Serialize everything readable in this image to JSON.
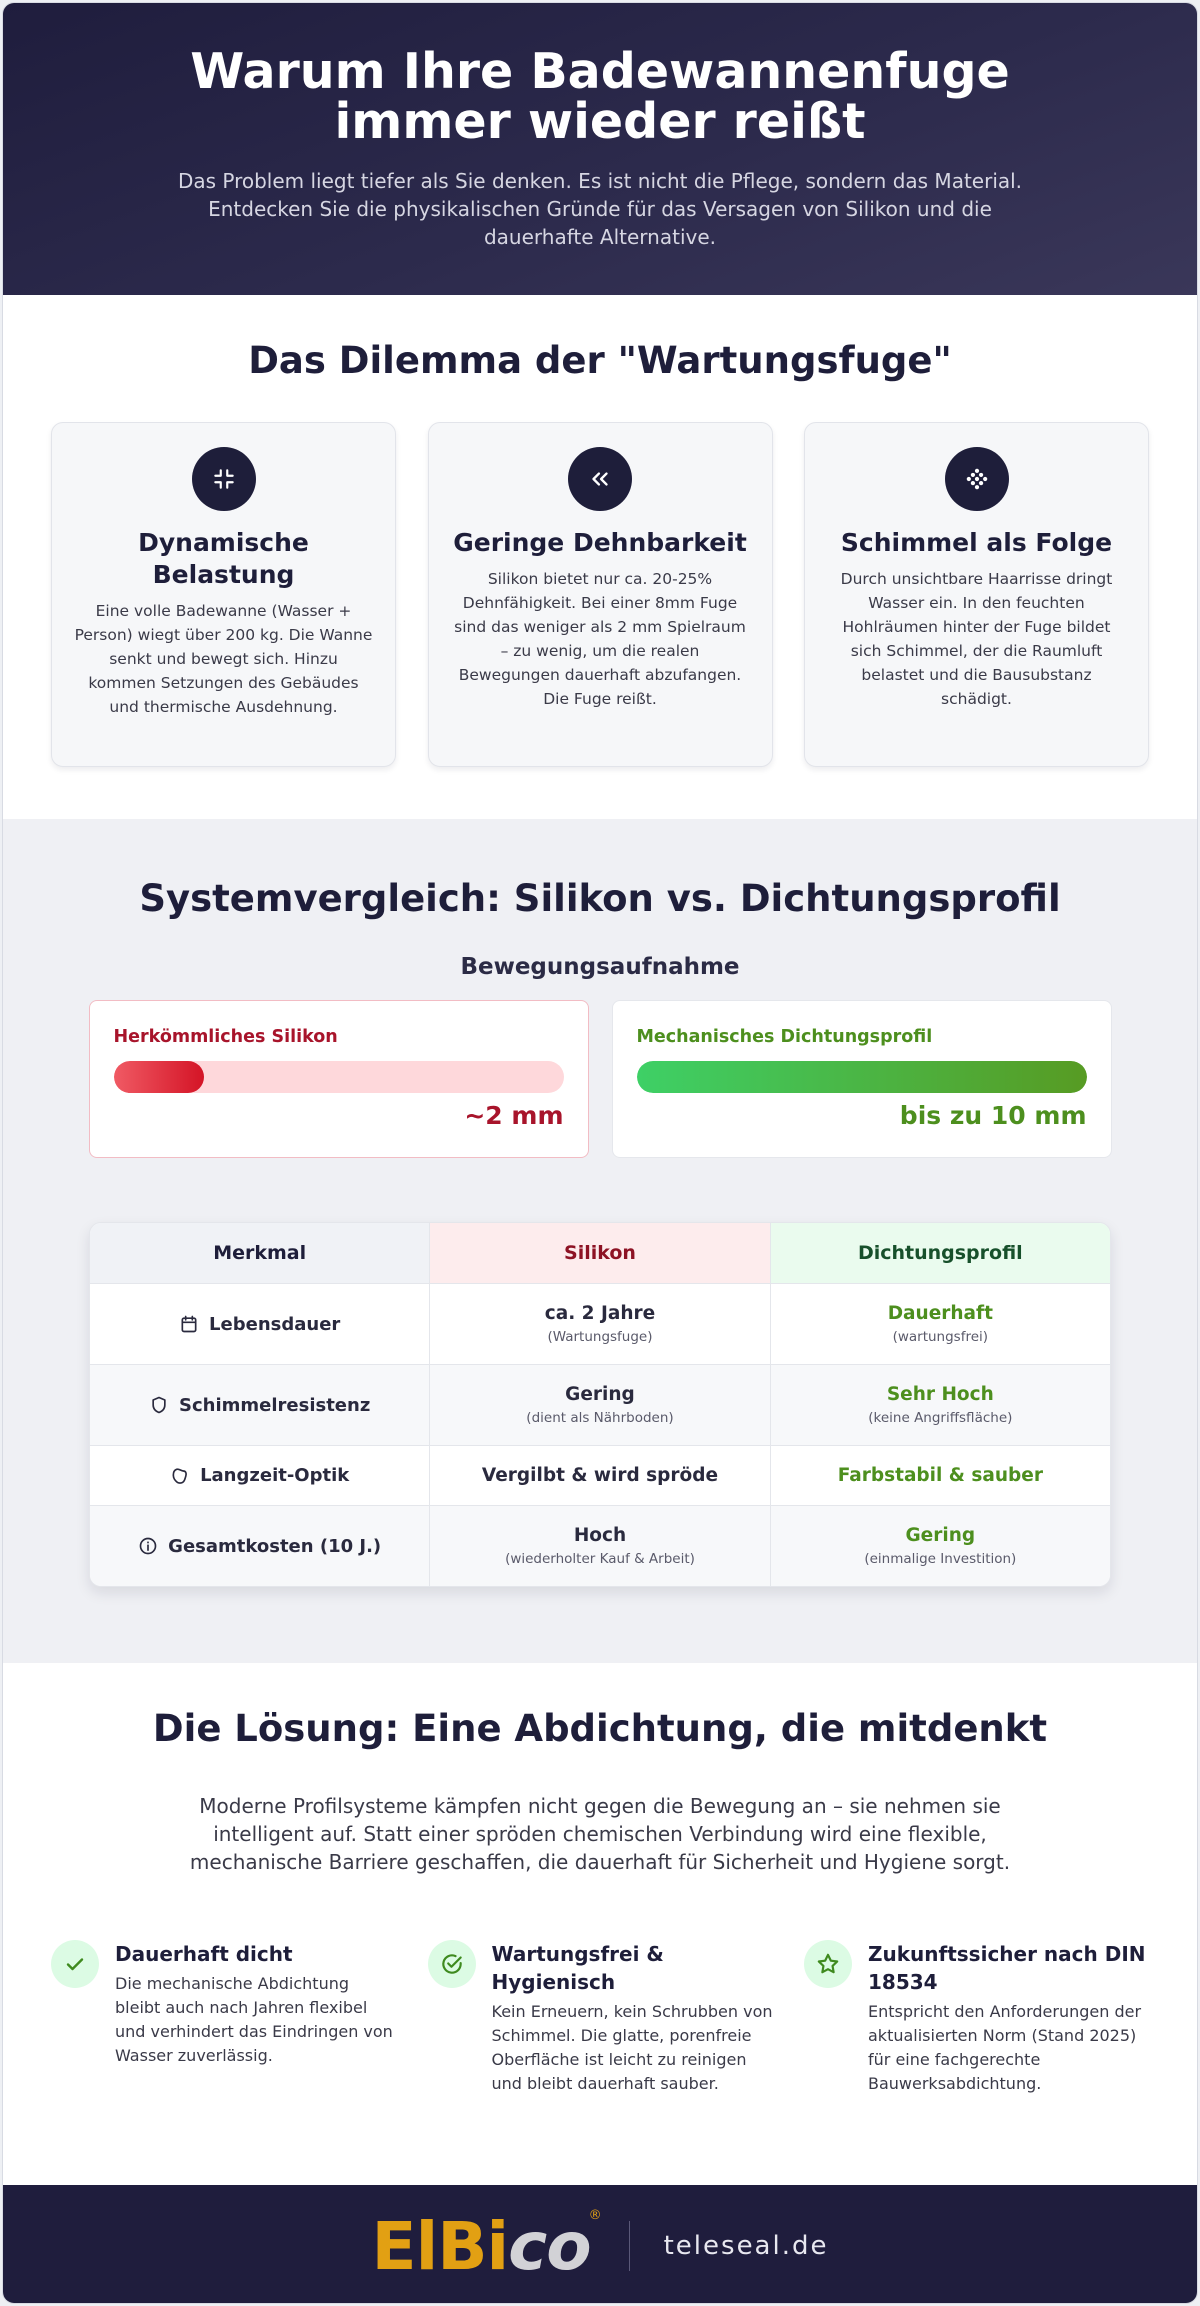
{
  "hero": {
    "title": "Warum Ihre Badewannenfuge immer wieder reißt",
    "subtitle": "Das Problem liegt tiefer als Sie denken. Es ist nicht die Pflege, sondern das Material. Entdecken Sie die physikalischen Gründe für das Versagen von Silikon und die dauerhafte Alternative."
  },
  "dilemma": {
    "title": "Das Dilemma der \"Wartungsfuge\"",
    "cards": [
      {
        "icon": "compress-icon",
        "title": "Dynamische Belastung",
        "text": "Eine volle Badewanne (Wasser + Person) wiegt über 200 kg. Die Wanne senkt und bewegt sich. Hinzu kommen Setzungen des Gebäudes und thermische Ausdehnung."
      },
      {
        "icon": "double-chevron-left-icon",
        "title": "Geringe Dehnbarkeit",
        "text": "Silikon bietet nur ca. 20-25% Dehnfähigkeit. Bei einer 8mm Fuge sind das weniger als 2 mm Spielraum – zu wenig, um die realen Bewegungen dauerhaft abzufangen. Die Fuge reißt."
      },
      {
        "icon": "mold-dots-icon",
        "title": "Schimmel als Folge",
        "text": "Durch unsichtbare Haarrisse dringt Wasser ein. In den feuchten Hohlräumen hinter der Fuge bildet sich Schimmel, der die Raumluft belastet und die Bausubstanz schädigt."
      }
    ]
  },
  "compare": {
    "title": "Systemvergleich: Silikon vs. Dichtungsprofil",
    "movement_title": "Bewegungsaufnahme",
    "silicone": {
      "label": "Herkömmliches Silikon",
      "value": "~2 mm",
      "fill_fraction": 0.2,
      "color": "#d41426"
    },
    "profile": {
      "label": "Mechanisches Dichtungsprofil",
      "value": "bis zu 10 mm",
      "fill_fraction": 1.0,
      "color": "#579b23"
    },
    "table": {
      "headers": [
        "Merkmal",
        "Silikon",
        "Dichtungsprofil"
      ],
      "rows": [
        {
          "icon": "calendar-icon",
          "feature": "Lebensdauer",
          "silicone": "ca. 2 Jahre",
          "silicone_note": "(Wartungsfuge)",
          "profile": "Dauerhaft",
          "profile_note": "(wartungsfrei)"
        },
        {
          "icon": "shield-icon",
          "feature": "Schimmelresistenz",
          "silicone": "Gering",
          "silicone_note": "(dient als Nährboden)",
          "profile": "Sehr Hoch",
          "profile_note": "(keine Angriffsfläche)"
        },
        {
          "icon": "blob-icon",
          "feature": "Langzeit-Optik",
          "silicone": "Vergilbt & wird spröde",
          "silicone_note": "",
          "profile": "Farbstabil & sauber",
          "profile_note": ""
        },
        {
          "icon": "info-icon",
          "feature": "Gesamtkosten (10 J.)",
          "silicone": "Hoch",
          "silicone_note": "(wiederholter Kauf & Arbeit)",
          "profile": "Gering",
          "profile_note": "(einmalige Investition)"
        }
      ]
    }
  },
  "solution": {
    "title": "Die Lösung: Eine Abdichtung, die mitdenkt",
    "intro": "Moderne Profilsysteme kämpfen nicht gegen die Bewegung an – sie nehmen sie intelligent auf. Statt einer spröden chemischen Verbindung wird eine flexible, mechanische Barriere geschaffen, die dauerhaft für Sicherheit und Hygiene sorgt.",
    "features": [
      {
        "icon": "check-icon",
        "title": "Dauerhaft dicht",
        "text": "Die mechanische Abdichtung bleibt auch nach Jahren flexibel und verhindert das Eindringen von Wasser zuverlässig."
      },
      {
        "icon": "check-circle-icon",
        "title": "Wartungsfrei & Hygienisch",
        "text": "Kein Erneuern, kein Schrubben von Schimmel. Die glatte, porenfreie Oberfläche ist leicht zu reinigen und bleibt dauerhaft sauber."
      },
      {
        "icon": "star-icon",
        "title": "Zukunftssicher nach DIN 18534",
        "text": "Entspricht den Anforderungen der aktualisierten Norm (Stand 2025) für eine fachgerechte Bauwerksabdichtung."
      }
    ]
  },
  "footer": {
    "logo_part1": "ElBi",
    "logo_part2": "co",
    "logo_reg": "®",
    "domain": "teleseal.de"
  }
}
